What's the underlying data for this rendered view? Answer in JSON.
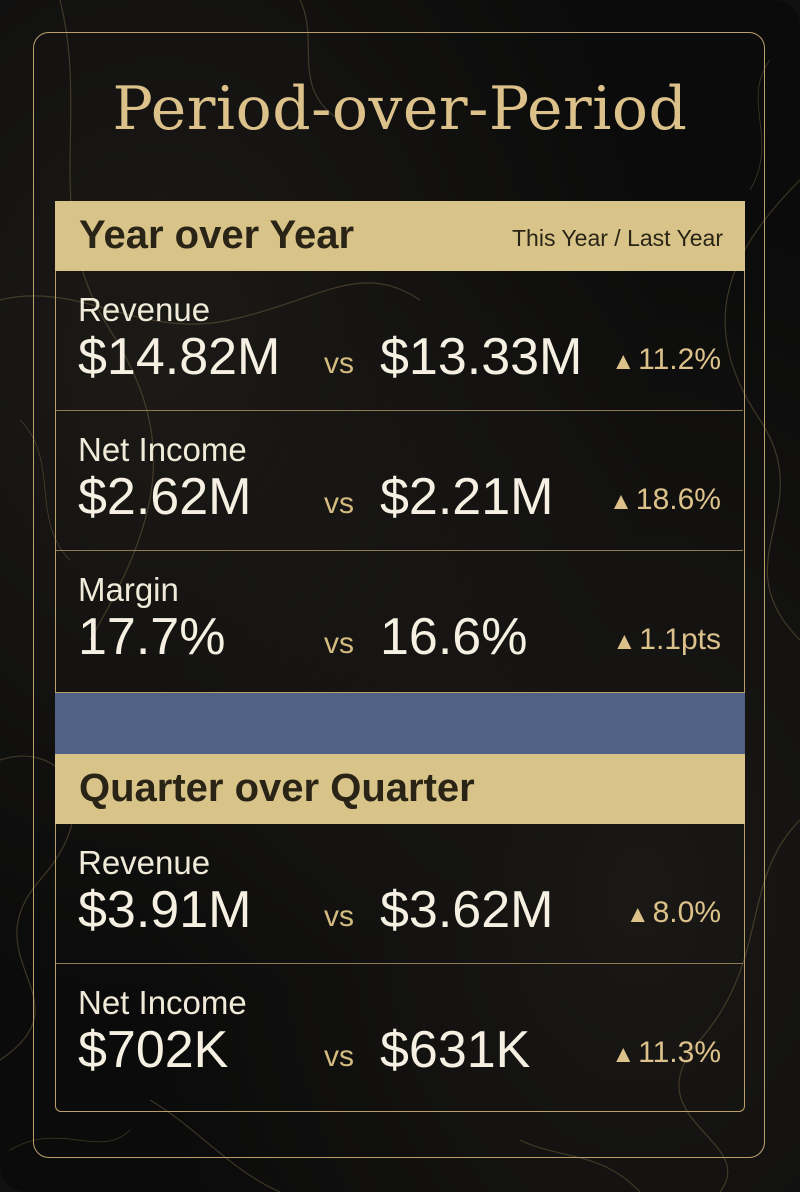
{
  "title": "Period-over-Period",
  "colors": {
    "gold": "#d8c488",
    "title_gold": "#dcc28a",
    "separator_blue": "#4f6184",
    "background": "#0b0b0b"
  },
  "vs_label": "vs",
  "up_icon": "triangle-up-icon",
  "yoy": {
    "title": "Year over Year",
    "legend": "This Year / Last Year",
    "rows": [
      {
        "metric": "Revenue",
        "current": "$14.82M",
        "previous": "$13.33M",
        "change": "11.2%"
      },
      {
        "metric": "Net Income",
        "current": "$2.62M",
        "previous": "$2.21M",
        "change": "18.6%"
      },
      {
        "metric": "Margin",
        "current": "17.7%",
        "previous": "16.6%",
        "change": "1.1pts"
      }
    ]
  },
  "qoq": {
    "title": "Quarter over Quarter",
    "rows": [
      {
        "metric": "Revenue",
        "current": "$3.91M",
        "previous": "$3.62M",
        "change": "8.0%"
      },
      {
        "metric": "Net Income",
        "current": "$702K",
        "previous": "$631K",
        "change": "11.3%"
      }
    ]
  }
}
